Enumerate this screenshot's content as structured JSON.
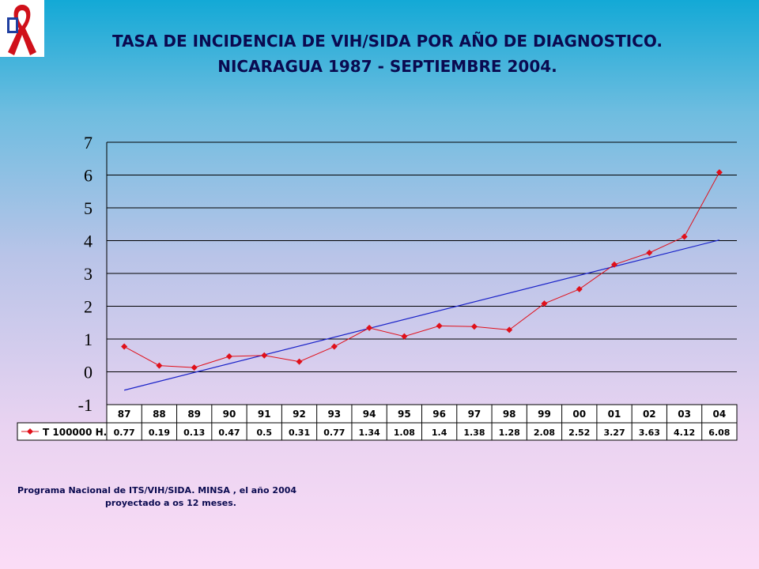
{
  "header": {
    "title_line1": "TASA DE INCIDENCIA DE VIH/SIDA POR AÑO DE DIAGNOSTICO.",
    "title_line2": "NICARAGUA 1987 -  SEPTIEMBRE 2004."
  },
  "chart_data": {
    "type": "line",
    "title": "TASA DE INCIDENCIA DE VIH/SIDA POR AÑO DE DIAGNOSTICO. NICARAGUA 1987 -  SEPTIEMBRE 2004.",
    "categories": [
      "87",
      "88",
      "89",
      "90",
      "91",
      "92",
      "93",
      "94",
      "95",
      "96",
      "97",
      "98",
      "99",
      "00",
      "01",
      "02",
      "03",
      "04"
    ],
    "series": [
      {
        "name": "T 100000 H.",
        "values": [
          0.77,
          0.19,
          0.13,
          0.47,
          0.5,
          0.31,
          0.77,
          1.34,
          1.08,
          1.4,
          1.38,
          1.28,
          2.08,
          2.52,
          3.27,
          3.63,
          4.12,
          6.08
        ],
        "color": "#e0101a",
        "marker": "diamond"
      }
    ],
    "trendline": {
      "type": "linear",
      "color": "#1a22c8",
      "start": -0.56,
      "end": 4.02
    },
    "y_ticks": [
      "7",
      "6",
      "5",
      "4",
      "3",
      "2",
      "1",
      "0",
      "-1"
    ],
    "ylim": [
      -1,
      7
    ],
    "grid": true,
    "data_table": true
  },
  "footnote": {
    "line1": "Programa Nacional de ITS/VIH/SIDA.  MINSA , el año 2004",
    "line2": "proyectado a os 12 meses."
  },
  "colors": {
    "title": "#0a0a50",
    "series": "#e0101a",
    "trend": "#1a22c8",
    "ribbon": "#d0101a",
    "logo_blue": "#1f3fa0"
  }
}
